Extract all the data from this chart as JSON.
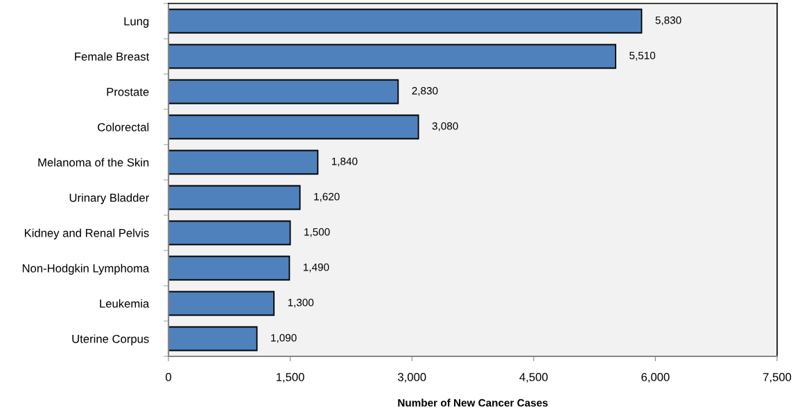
{
  "chart_data": {
    "type": "bar",
    "orientation": "horizontal",
    "xlabel": "Number of New Cancer Cases",
    "categories": [
      "Lung",
      "Female Breast",
      "Prostate",
      "Colorectal",
      "Melanoma of the Skin",
      "Urinary Bladder",
      "Kidney and Renal Pelvis",
      "Non-Hodgkin Lymphoma",
      "Leukemia",
      "Uterine Corpus"
    ],
    "values": [
      5830,
      5510,
      2830,
      3080,
      1840,
      1620,
      1500,
      1490,
      1300,
      1090
    ],
    "value_labels": [
      "5,830",
      "5,510",
      "2,830",
      "3,080",
      "1,840",
      "1,620",
      "1,500",
      "1,490",
      "1,300",
      "1,090"
    ],
    "color": "#4f81bd",
    "xlim": [
      0,
      7500
    ],
    "xticks": [
      0,
      {
        "value": 1500,
        "label": "1,500"
      },
      {
        "value": 3000,
        "label": "3,000"
      },
      {
        "value": 4500,
        "label": "4,500"
      },
      {
        "value": 6000,
        "label": "6,000"
      },
      {
        "value": 7500,
        "label": "7,500"
      }
    ],
    "grid": false,
    "legend": false
  }
}
